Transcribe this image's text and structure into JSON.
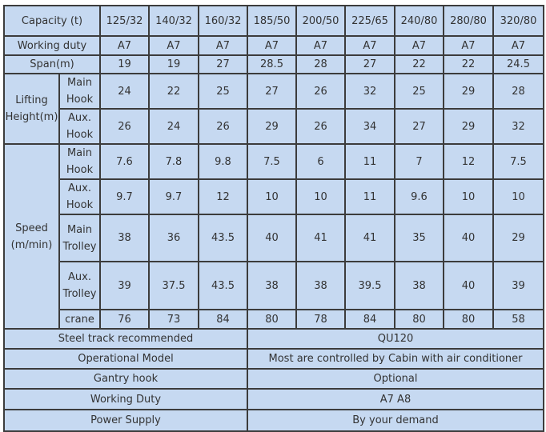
{
  "table": {
    "capacity_label": "Capacity  (t)",
    "capacities": [
      "125/32",
      "140/32",
      "160/32",
      "185/50",
      "200/50",
      "225/65",
      "240/80",
      "280/80",
      "320/80"
    ],
    "working_duty_label": "Working duty",
    "working_duty": [
      "A7",
      "A7",
      "A7",
      "A7",
      "A7",
      "A7",
      "A7",
      "A7",
      "A7"
    ],
    "span_label": "Span(m)",
    "span": [
      "19",
      "19",
      "27",
      "28.5",
      "28",
      "27",
      "22",
      "22",
      "24.5"
    ],
    "lifting_height_label": "Lifting Height(m)",
    "lifting_height": [
      {
        "label": "Main Hook",
        "values": [
          "24",
          "22",
          "25",
          "27",
          "26",
          "32",
          "25",
          "29",
          "28"
        ]
      },
      {
        "label": "Aux. Hook",
        "values": [
          "26",
          "24",
          "26",
          "29",
          "26",
          "34",
          "27",
          "29",
          "32"
        ]
      }
    ],
    "speed_label": "Speed (m/min)",
    "speed": [
      {
        "label": "Main Hook",
        "values": [
          "7.6",
          "7.8",
          "9.8",
          "7.5",
          "6",
          "11",
          "7",
          "12",
          "7.5"
        ]
      },
      {
        "label": "Aux. Hook",
        "values": [
          "9.7",
          "9.7",
          "12",
          "10",
          "10",
          "11",
          "9.6",
          "10",
          "10"
        ]
      },
      {
        "label": "Main Trolley",
        "values": [
          "38",
          "36",
          "43.5",
          "40",
          "41",
          "41",
          "35",
          "40",
          "29"
        ]
      },
      {
        "label": "Aux. Trolley",
        "values": [
          "39",
          "37.5",
          "43.5",
          "38",
          "38",
          "39.5",
          "38",
          "40",
          "39"
        ]
      },
      {
        "label": "crane",
        "values": [
          "76",
          "73",
          "84",
          "80",
          "78",
          "84",
          "80",
          "80",
          "58"
        ]
      }
    ],
    "footer_rows": [
      {
        "label": "Steel track recommended",
        "value": "QU120"
      },
      {
        "label": "Operational Model",
        "value": "Most are controlled by Cabin with air conditioner"
      },
      {
        "label": "Gantry hook",
        "value": "Optional"
      },
      {
        "label": "Working Duty",
        "value": "A7 A8"
      },
      {
        "label": "Power Supply",
        "value": "By your demand"
      }
    ]
  }
}
